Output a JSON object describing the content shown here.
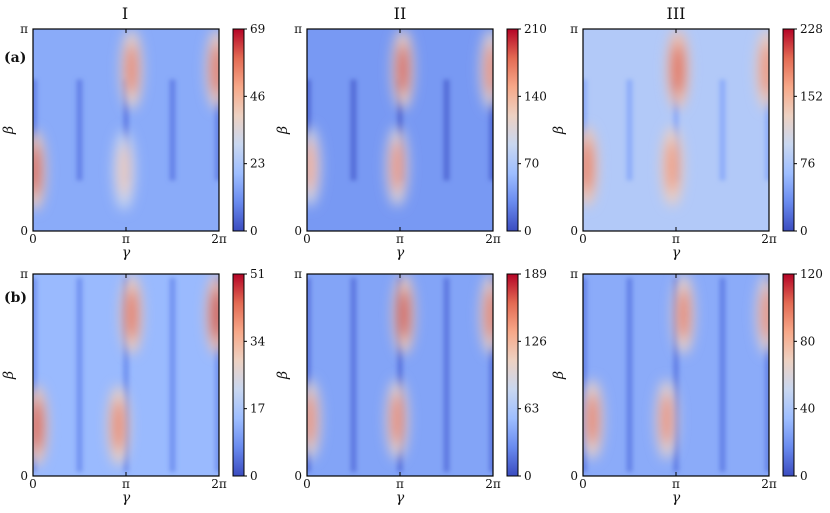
{
  "colormap": [
    "#3b4cc0",
    "#6a8bef",
    "#9ebeff",
    "#c9d7f0",
    "#edd1c2",
    "#f7a889",
    "#e36a53",
    "#b40426"
  ],
  "colors": {
    "background": "#ffffff",
    "axis": "#000000",
    "text": "#111111"
  },
  "column_titles": [
    "I",
    "II",
    "III"
  ],
  "row_labels": [
    "(a)",
    "(b)"
  ],
  "chart_data": [
    {
      "type": "heatmap",
      "row": "(a)",
      "column": "I",
      "xlabel": "γ",
      "ylabel": "β",
      "x_range": [
        "0",
        "2π"
      ],
      "y_range": [
        "0",
        "π"
      ],
      "x_ticks": [
        "0",
        "π",
        "2π"
      ],
      "y_ticks": [
        "0",
        "π"
      ],
      "colorbar": {
        "min": 0,
        "max": 69,
        "ticks": [
          "0",
          "23",
          "46",
          "69"
        ]
      },
      "peaks": [
        {
          "gamma_pi": 0.02,
          "beta_pi": 0.3,
          "value": 62
        },
        {
          "gamma_pi": 0.98,
          "beta_pi": 0.3,
          "value": 42
        },
        {
          "gamma_pi": 1.06,
          "beta_pi": 0.8,
          "value": 57
        },
        {
          "gamma_pi": 1.98,
          "beta_pi": 0.8,
          "value": 60
        }
      ],
      "baseline": 16
    },
    {
      "type": "heatmap",
      "row": "(a)",
      "column": "II",
      "xlabel": "γ",
      "ylabel": "β",
      "x_range": [
        "0",
        "2π"
      ],
      "y_range": [
        "0",
        "π"
      ],
      "x_ticks": [
        "0",
        "π",
        "2π"
      ],
      "y_ticks": [
        "0",
        "π"
      ],
      "colorbar": {
        "min": 0,
        "max": 210,
        "ticks": [
          "0",
          "70",
          "140",
          "210"
        ]
      },
      "peaks": [
        {
          "gamma_pi": 0.03,
          "beta_pi": 0.32,
          "value": 150
        },
        {
          "gamma_pi": 0.97,
          "beta_pi": 0.32,
          "value": 165
        },
        {
          "gamma_pi": 1.03,
          "beta_pi": 0.8,
          "value": 190
        },
        {
          "gamma_pi": 1.98,
          "beta_pi": 0.8,
          "value": 170
        }
      ],
      "baseline": 38
    },
    {
      "type": "heatmap",
      "row": "(a)",
      "column": "III",
      "xlabel": "γ",
      "ylabel": "β",
      "x_range": [
        "0",
        "2π"
      ],
      "y_range": [
        "0",
        "π"
      ],
      "x_ticks": [
        "0",
        "π",
        "2π"
      ],
      "y_ticks": [
        "0",
        "π"
      ],
      "colorbar": {
        "min": 0,
        "max": 228,
        "ticks": [
          "0",
          "76",
          "152",
          "228"
        ]
      },
      "peaks": [
        {
          "gamma_pi": 0.04,
          "beta_pi": 0.32,
          "value": 190
        },
        {
          "gamma_pi": 0.96,
          "beta_pi": 0.32,
          "value": 175
        },
        {
          "gamma_pi": 1.02,
          "beta_pi": 0.8,
          "value": 200
        },
        {
          "gamma_pi": 1.98,
          "beta_pi": 0.8,
          "value": 180
        }
      ],
      "baseline": 80
    },
    {
      "type": "heatmap",
      "row": "(b)",
      "column": "I",
      "xlabel": "γ",
      "ylabel": "β",
      "x_range": [
        "0",
        "2π"
      ],
      "y_range": [
        "0",
        "π"
      ],
      "x_ticks": [
        "0",
        "π",
        "2π"
      ],
      "y_ticks": [
        "0",
        "π"
      ],
      "colorbar": {
        "min": 0,
        "max": 51,
        "ticks": [
          "0",
          "17",
          "34",
          "51"
        ]
      },
      "peaks": [
        {
          "gamma_pi": 0.04,
          "beta_pi": 0.25,
          "value": 46
        },
        {
          "gamma_pi": 0.92,
          "beta_pi": 0.25,
          "value": 42
        },
        {
          "gamma_pi": 1.06,
          "beta_pi": 0.8,
          "value": 44
        },
        {
          "gamma_pi": 1.98,
          "beta_pi": 0.8,
          "value": 48
        }
      ],
      "baseline": 14
    },
    {
      "type": "heatmap",
      "row": "(b)",
      "column": "II",
      "xlabel": "γ",
      "ylabel": "β",
      "x_range": [
        "0",
        "2π"
      ],
      "y_range": [
        "0",
        "π"
      ],
      "x_ticks": [
        "0",
        "π",
        "2π"
      ],
      "y_ticks": [
        "0",
        "π"
      ],
      "colorbar": {
        "min": 0,
        "max": 189,
        "ticks": [
          "0",
          "63",
          "126",
          "189"
        ]
      },
      "peaks": [
        {
          "gamma_pi": 0.03,
          "beta_pi": 0.28,
          "value": 150
        },
        {
          "gamma_pi": 0.97,
          "beta_pi": 0.28,
          "value": 155
        },
        {
          "gamma_pi": 1.04,
          "beta_pi": 0.8,
          "value": 175
        },
        {
          "gamma_pi": 1.98,
          "beta_pi": 0.8,
          "value": 160
        }
      ],
      "baseline": 40
    },
    {
      "type": "heatmap",
      "row": "(b)",
      "column": "III",
      "xlabel": "γ",
      "ylabel": "β",
      "x_range": [
        "0",
        "2π"
      ],
      "y_range": [
        "0",
        "π"
      ],
      "x_ticks": [
        "0",
        "π",
        "2π"
      ],
      "y_ticks": [
        "0",
        "π"
      ],
      "colorbar": {
        "min": 0,
        "max": 120,
        "ticks": [
          "0",
          "40",
          "80",
          "120"
        ]
      },
      "peaks": [
        {
          "gamma_pi": 0.1,
          "beta_pi": 0.28,
          "value": 100
        },
        {
          "gamma_pi": 0.9,
          "beta_pi": 0.28,
          "value": 95
        },
        {
          "gamma_pi": 1.08,
          "beta_pi": 0.8,
          "value": 100
        },
        {
          "gamma_pi": 1.98,
          "beta_pi": 0.8,
          "value": 95
        }
      ],
      "baseline": 28
    }
  ]
}
